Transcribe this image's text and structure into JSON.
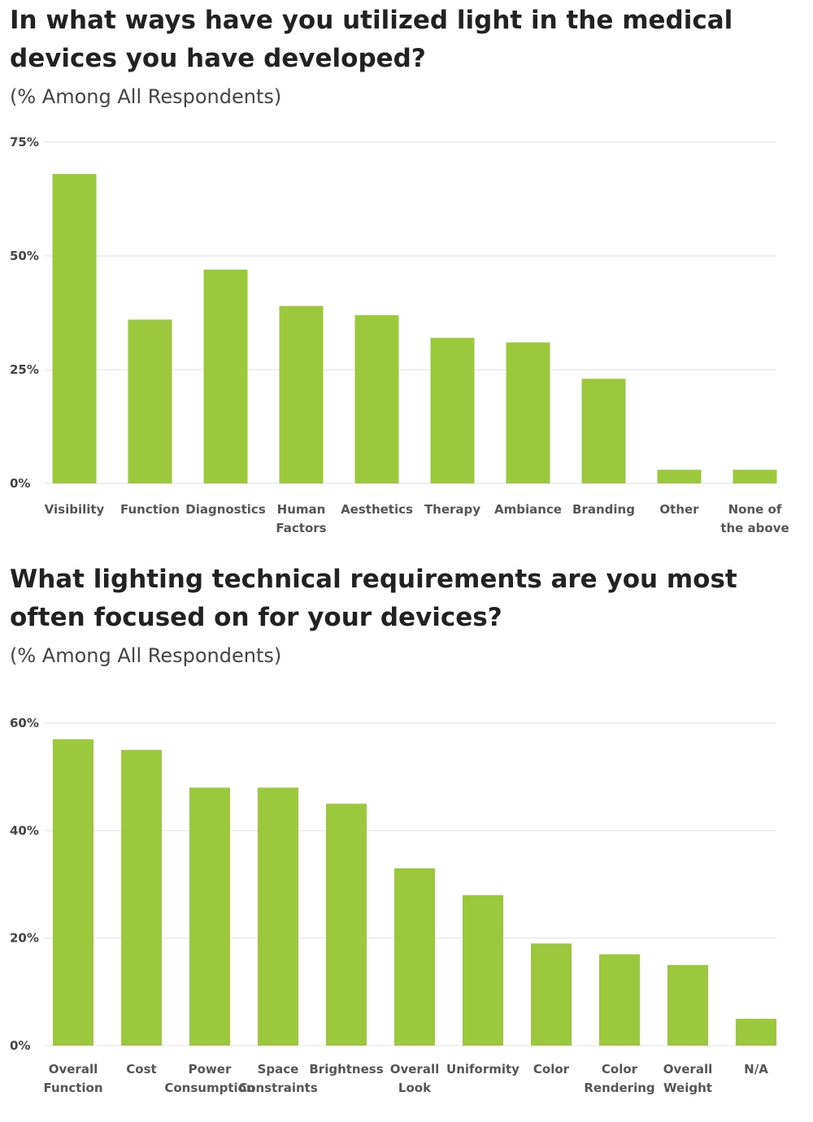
{
  "charts": [
    {
      "title": "In what ways have you utilized light in the medical devices you have developed?",
      "subtitle": "(% Among All Respondents)"
    },
    {
      "title": "What lighting technical requirements are you most often focused on for your devices?",
      "subtitle": "(% Among All Respondents)"
    }
  ],
  "chart_data": [
    {
      "type": "bar",
      "title": "In what ways have you utilized light in the medical devices you have developed?",
      "subtitle": "(% Among All Respondents)",
      "categories": [
        [
          "Visibility"
        ],
        [
          "Function"
        ],
        [
          "Diagnostics"
        ],
        [
          "Human",
          "Factors"
        ],
        [
          "Aesthetics"
        ],
        [
          "Therapy"
        ],
        [
          "Ambiance"
        ],
        [
          "Branding"
        ],
        [
          "Other"
        ],
        [
          "None of",
          "the above"
        ]
      ],
      "values": [
        68,
        36,
        47,
        39,
        37,
        32,
        31,
        23,
        3,
        3
      ],
      "yticks": [
        "0%",
        "25%",
        "50%",
        "75%"
      ],
      "ylim": [
        0,
        75
      ],
      "grid": true,
      "bar_color": "#9BC83C",
      "grid_color": "#E2E2E2"
    },
    {
      "type": "bar",
      "title": "What lighting technical requirements are you most often focused on for your devices?",
      "subtitle": "(% Among All Respondents)",
      "categories": [
        [
          "Overall",
          "Function"
        ],
        [
          "Cost"
        ],
        [
          "Power",
          "Consumption"
        ],
        [
          "Space",
          "Constraints"
        ],
        [
          "Brightness"
        ],
        [
          "Overall",
          "Look"
        ],
        [
          "Uniformity"
        ],
        [
          "Color"
        ],
        [
          "Color",
          "Rendering"
        ],
        [
          "Overall",
          "Weight"
        ],
        [
          "N/A"
        ]
      ],
      "values": [
        57,
        55,
        48,
        48,
        45,
        33,
        28,
        19,
        17,
        15,
        5
      ],
      "yticks": [
        "0%",
        "20%",
        "40%",
        "60%"
      ],
      "ylim": [
        0,
        60
      ],
      "grid": true,
      "bar_color": "#9BC83C",
      "grid_color": "#E2E2E2"
    }
  ]
}
